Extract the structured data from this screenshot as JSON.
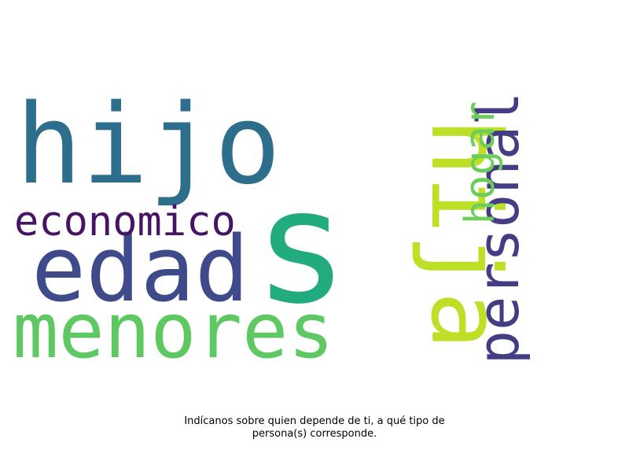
{
  "wordcloud": {
    "words": [
      {
        "text": "s",
        "color": "#22ab7f"
      },
      {
        "text": "hijo",
        "color": "#2d6e8d"
      },
      {
        "text": "hija",
        "color": "#bddf26"
      },
      {
        "text": "edad",
        "color": "#3e4a89"
      },
      {
        "text": "menores",
        "color": "#5ec962"
      },
      {
        "text": "economico",
        "color": "#471365"
      },
      {
        "text": "personal",
        "color": "#433d84"
      },
      {
        "text": "hogar",
        "color": "#6ccd5a"
      }
    ]
  },
  "caption": {
    "line1": "Indícanos sobre quien depende de ti, a qué tipo de",
    "line2": "persona(s) corresponde."
  }
}
